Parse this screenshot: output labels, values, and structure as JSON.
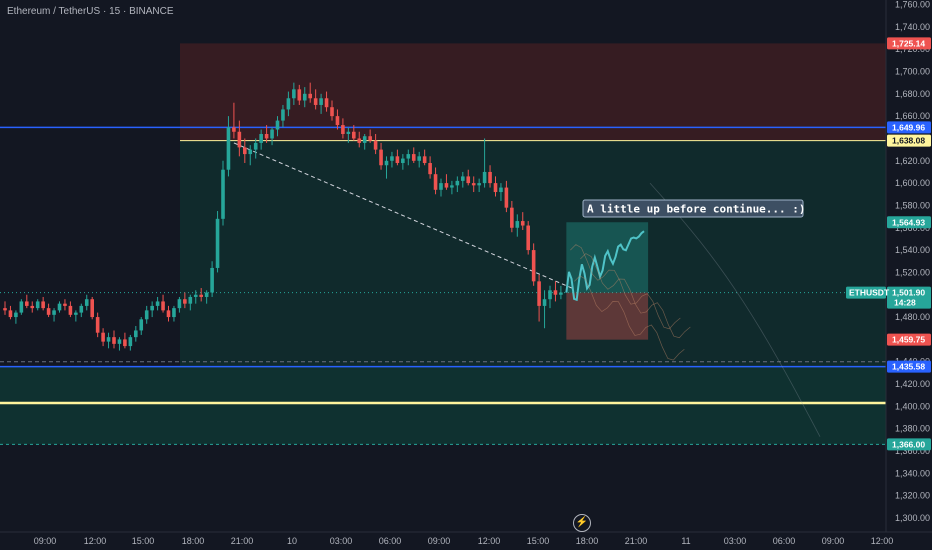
{
  "header": {
    "title": "Ethereum / TetherUS · 15 · BINANCE"
  },
  "colors": {
    "background": "#131722",
    "up": "#26a69a",
    "down": "#ef5350",
    "blue_line": "#2962ff",
    "yellow_line": "#fff59d",
    "teal_zone": "#0f3b35",
    "red_zone": "#3b1d22",
    "annotation_bg": "#3d4f63"
  },
  "annotation": {
    "text": "A little up before continue... :)"
  },
  "icons": {
    "replay": "lightning-icon"
  },
  "chart_data": {
    "type": "candlestick",
    "symbol": "ETHUSDT",
    "exchange": "BINANCE",
    "interval": "15",
    "ylim": [
      1290,
      1770
    ],
    "y_ticks": [
      "1,760.00",
      "1,740.00",
      "1,720.00",
      "1,700.00",
      "1,680.00",
      "1,660.00",
      "1,640.00",
      "1,620.00",
      "1,600.00",
      "1,580.00",
      "1,560.00",
      "1,540.00",
      "1,520.00",
      "1,500.00",
      "1,480.00",
      "1,460.00",
      "1,440.00",
      "1,420.00",
      "1,400.00",
      "1,380.00",
      "1,360.00",
      "1,340.00",
      "1,320.00",
      "1,300.00"
    ],
    "x_ticks": [
      "09:00",
      "12:00",
      "15:00",
      "18:00",
      "21:00",
      "10",
      "03:00",
      "06:00",
      "09:00",
      "12:00",
      "15:00",
      "18:00",
      "21:00",
      "11",
      "03:00",
      "06:00",
      "09:00",
      "12:00"
    ],
    "price_labels": [
      {
        "text": "1,725.14",
        "value": 1725.14,
        "color": "#ef5350"
      },
      {
        "text": "1,649.96",
        "value": 1649.96,
        "color": "#2962ff"
      },
      {
        "text": "1,638.08",
        "value": 1638.08,
        "color": "#fff59d"
      },
      {
        "text": "1,564.93",
        "value": 1564.93,
        "color": "#26a69a"
      },
      {
        "text": "1,459.75",
        "value": 1459.75,
        "color": "#ef5350"
      },
      {
        "text": "1,435.58",
        "value": 1435.58,
        "color": "#2962ff"
      },
      {
        "text": "1,366.00",
        "value": 1366.0,
        "color": "#26a69a"
      }
    ],
    "current_price": {
      "symbol": "ETHUSDT",
      "price": "1,501.90",
      "value": 1501.9,
      "countdown": "14:28"
    },
    "horizontal_lines": [
      {
        "value": 1649.96,
        "color": "#2962ff"
      },
      {
        "value": 1435.58,
        "color": "#2962ff"
      },
      {
        "value": 1403,
        "color": "#fff59d"
      }
    ],
    "candles_ohlc": [
      [
        1488,
        1494,
        1482,
        1486
      ],
      [
        1486,
        1490,
        1478,
        1480
      ],
      [
        1480,
        1486,
        1474,
        1484
      ],
      [
        1484,
        1496,
        1482,
        1494
      ],
      [
        1494,
        1500,
        1488,
        1490
      ],
      [
        1490,
        1494,
        1484,
        1488
      ],
      [
        1488,
        1496,
        1486,
        1494
      ],
      [
        1494,
        1498,
        1486,
        1488
      ],
      [
        1488,
        1492,
        1480,
        1482
      ],
      [
        1482,
        1488,
        1476,
        1486
      ],
      [
        1486,
        1494,
        1484,
        1492
      ],
      [
        1492,
        1496,
        1486,
        1490
      ],
      [
        1490,
        1494,
        1480,
        1482
      ],
      [
        1482,
        1486,
        1476,
        1484
      ],
      [
        1484,
        1492,
        1480,
        1490
      ],
      [
        1490,
        1500,
        1486,
        1496
      ],
      [
        1496,
        1498,
        1478,
        1480
      ],
      [
        1480,
        1484,
        1462,
        1466
      ],
      [
        1466,
        1470,
        1454,
        1458
      ],
      [
        1458,
        1466,
        1452,
        1462
      ],
      [
        1462,
        1468,
        1452,
        1456
      ],
      [
        1456,
        1462,
        1450,
        1460
      ],
      [
        1460,
        1466,
        1452,
        1454
      ],
      [
        1454,
        1464,
        1450,
        1462
      ],
      [
        1462,
        1472,
        1458,
        1468
      ],
      [
        1468,
        1480,
        1464,
        1478
      ],
      [
        1478,
        1490,
        1474,
        1486
      ],
      [
        1486,
        1494,
        1480,
        1490
      ],
      [
        1490,
        1498,
        1486,
        1494
      ],
      [
        1494,
        1500,
        1484,
        1486
      ],
      [
        1486,
        1490,
        1476,
        1480
      ],
      [
        1480,
        1490,
        1476,
        1488
      ],
      [
        1488,
        1498,
        1484,
        1496
      ],
      [
        1496,
        1502,
        1488,
        1492
      ],
      [
        1492,
        1500,
        1486,
        1498
      ],
      [
        1498,
        1504,
        1492,
        1500
      ],
      [
        1500,
        1506,
        1494,
        1498
      ],
      [
        1498,
        1504,
        1492,
        1502
      ],
      [
        1502,
        1530,
        1498,
        1524
      ],
      [
        1524,
        1575,
        1520,
        1568
      ],
      [
        1568,
        1620,
        1562,
        1612
      ],
      [
        1612,
        1660,
        1606,
        1650
      ],
      [
        1650,
        1672,
        1640,
        1646
      ],
      [
        1646,
        1656,
        1624,
        1632
      ],
      [
        1632,
        1640,
        1618,
        1626
      ],
      [
        1626,
        1634,
        1616,
        1630
      ],
      [
        1630,
        1640,
        1622,
        1636
      ],
      [
        1636,
        1648,
        1630,
        1644
      ],
      [
        1644,
        1652,
        1636,
        1640
      ],
      [
        1640,
        1650,
        1634,
        1648
      ],
      [
        1648,
        1660,
        1642,
        1656
      ],
      [
        1656,
        1670,
        1650,
        1666
      ],
      [
        1666,
        1682,
        1660,
        1676
      ],
      [
        1676,
        1690,
        1670,
        1684
      ],
      [
        1684,
        1688,
        1670,
        1674
      ],
      [
        1674,
        1686,
        1668,
        1680
      ],
      [
        1680,
        1690,
        1672,
        1676
      ],
      [
        1676,
        1684,
        1666,
        1670
      ],
      [
        1670,
        1680,
        1662,
        1676
      ],
      [
        1676,
        1682,
        1664,
        1668
      ],
      [
        1668,
        1674,
        1656,
        1660
      ],
      [
        1660,
        1666,
        1648,
        1652
      ],
      [
        1652,
        1658,
        1640,
        1644
      ],
      [
        1644,
        1650,
        1636,
        1646
      ],
      [
        1646,
        1652,
        1638,
        1640
      ],
      [
        1640,
        1646,
        1632,
        1636
      ],
      [
        1636,
        1644,
        1630,
        1642
      ],
      [
        1642,
        1648,
        1636,
        1638
      ],
      [
        1638,
        1644,
        1626,
        1630
      ],
      [
        1630,
        1636,
        1612,
        1616
      ],
      [
        1616,
        1624,
        1604,
        1620
      ],
      [
        1620,
        1628,
        1614,
        1624
      ],
      [
        1624,
        1630,
        1616,
        1618
      ],
      [
        1618,
        1626,
        1612,
        1622
      ],
      [
        1622,
        1630,
        1616,
        1626
      ],
      [
        1626,
        1632,
        1618,
        1620
      ],
      [
        1620,
        1628,
        1614,
        1624
      ],
      [
        1624,
        1630,
        1616,
        1618
      ],
      [
        1618,
        1624,
        1604,
        1608
      ],
      [
        1608,
        1614,
        1590,
        1594
      ],
      [
        1594,
        1604,
        1588,
        1600
      ],
      [
        1600,
        1608,
        1594,
        1596
      ],
      [
        1596,
        1602,
        1590,
        1598
      ],
      [
        1598,
        1606,
        1592,
        1602
      ],
      [
        1602,
        1610,
        1596,
        1606
      ],
      [
        1606,
        1612,
        1598,
        1600
      ],
      [
        1600,
        1606,
        1592,
        1598
      ],
      [
        1598,
        1604,
        1592,
        1600
      ],
      [
        1600,
        1640,
        1596,
        1610
      ],
      [
        1610,
        1616,
        1596,
        1600
      ],
      [
        1600,
        1606,
        1588,
        1592
      ],
      [
        1592,
        1600,
        1584,
        1596
      ],
      [
        1596,
        1602,
        1574,
        1578
      ],
      [
        1578,
        1584,
        1556,
        1560
      ],
      [
        1560,
        1572,
        1552,
        1566
      ],
      [
        1566,
        1574,
        1558,
        1562
      ],
      [
        1562,
        1566,
        1536,
        1540
      ],
      [
        1540,
        1546,
        1508,
        1512
      ],
      [
        1512,
        1518,
        1476,
        1490
      ],
      [
        1490,
        1504,
        1470,
        1496
      ],
      [
        1496,
        1508,
        1488,
        1504
      ],
      [
        1504,
        1512,
        1494,
        1500
      ],
      [
        1500,
        1508,
        1496,
        1502
      ]
    ],
    "trendline": {
      "from": {
        "candle": 42,
        "value": 1636
      },
      "to": {
        "candle": 104,
        "value": 1506
      }
    },
    "projection_box": {
      "entry": 1501.9,
      "target": 1564.93,
      "stop": 1459.75,
      "from_candle": 103,
      "to_candle": 118
    }
  }
}
